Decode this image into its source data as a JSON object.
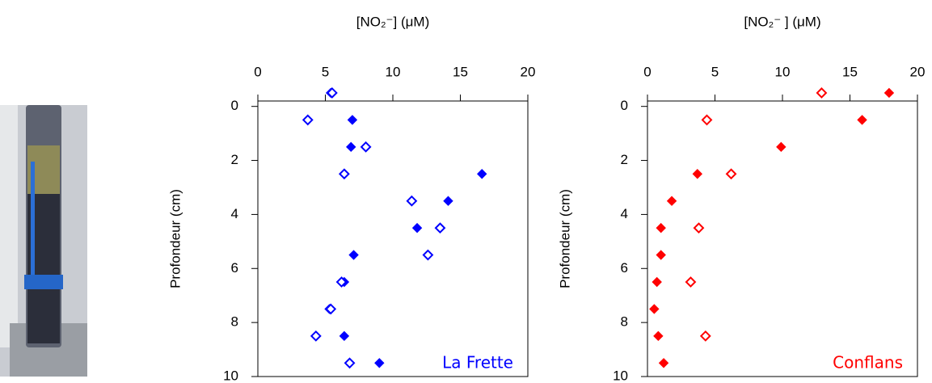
{
  "chart_data": [
    {
      "type": "scatter",
      "title": "[NO₂⁻]  (μM)",
      "ylabel": "Profondeur (cm)",
      "annotation": "La Frette",
      "annotation_color": "#0000ff",
      "xlim": [
        0,
        20
      ],
      "xticks": [
        0,
        5,
        10,
        15,
        20
      ],
      "ylim": [
        10,
        -0.2
      ],
      "yticks": [
        0,
        2,
        4,
        6,
        8,
        10
      ],
      "series": [
        {
          "marker": "filled",
          "color": "#0000ff",
          "x": [
            5.4,
            7.0,
            6.9,
            16.6,
            14.1,
            11.8,
            7.1,
            6.4,
            5.3,
            6.4,
            9.0
          ],
          "y": [
            -0.5,
            0.5,
            1.5,
            2.5,
            3.5,
            4.5,
            5.5,
            6.5,
            7.5,
            8.5,
            9.5
          ]
        },
        {
          "marker": "open",
          "color": "#0000ff",
          "x": [
            5.5,
            3.7,
            8.0,
            6.4,
            11.4,
            13.5,
            12.6,
            6.2,
            5.4,
            4.3,
            6.8
          ],
          "y": [
            -0.5,
            0.5,
            1.5,
            2.5,
            3.5,
            4.5,
            5.5,
            6.5,
            7.5,
            8.5,
            9.5
          ]
        }
      ]
    },
    {
      "type": "scatter",
      "title": "[NO₂⁻ ] (μM)",
      "ylabel": "Profondeur (cm)",
      "annotation": "Conflans",
      "annotation_color": "#ff0000",
      "xlim": [
        0,
        20
      ],
      "xticks": [
        0,
        5,
        10,
        15,
        20
      ],
      "ylim": [
        10,
        -0.2
      ],
      "yticks": [
        0,
        2,
        4,
        6,
        8,
        10
      ],
      "series": [
        {
          "marker": "filled",
          "color": "#ff0000",
          "x": [
            17.9,
            15.9,
            9.9,
            3.7,
            1.8,
            1.0,
            1.0,
            0.7,
            0.5,
            0.8,
            1.2
          ],
          "y": [
            -0.5,
            0.5,
            1.5,
            2.5,
            3.5,
            4.5,
            5.5,
            6.5,
            7.5,
            8.5,
            9.5
          ]
        },
        {
          "marker": "open",
          "color": "#ff0000",
          "x": [
            12.9,
            4.4,
            6.2,
            3.8,
            3.2,
            4.3
          ],
          "y": [
            -0.5,
            0.5,
            2.5,
            4.5,
            6.5,
            8.5
          ]
        }
      ]
    }
  ]
}
